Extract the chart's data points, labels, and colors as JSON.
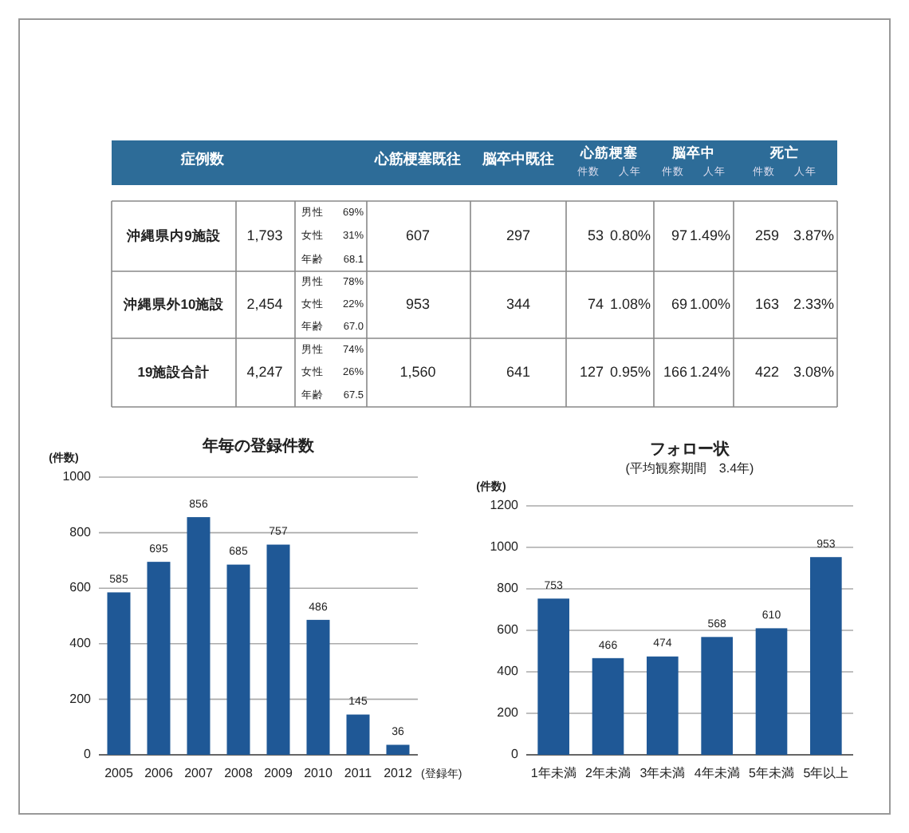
{
  "chart_data": [
    {
      "type": "other",
      "annotations": [
        "症例数",
        "心筋梗塞既往",
        "脳卒中既往",
        "心筋梗塞",
        "件数",
        "人年",
        "脳卒中",
        "件数",
        "人年",
        "死亡",
        "件数",
        "人年",
        "沖縄県内9施設",
        "1,793",
        "男性",
        "69%",
        "女性",
        "31%",
        "年齢",
        "68.1",
        "607",
        "297",
        "53",
        "0.80%",
        "97",
        "1.49%",
        "259",
        "3.87%",
        "沖縄県外10施設",
        "2,454",
        "男性",
        "78%",
        "女性",
        "22%",
        "年齢",
        "67.0",
        "953",
        "344",
        "74",
        "1.08%",
        "69",
        "1.00%",
        "163",
        "2.33%",
        "19施設合計",
        "4,247",
        "男性",
        "74%",
        "女性",
        "26%",
        "年齢",
        "67.5",
        "1,560",
        "641",
        "127",
        "0.95%",
        "166",
        "1.24%",
        "422",
        "3.08%"
      ]
    },
    {
      "type": "bar",
      "title": "年毎の登録件数",
      "ylabel": "(件数)",
      "xlabel": "(登録年)",
      "categories": [
        "2005",
        "2006",
        "2007",
        "2008",
        "2009",
        "2010",
        "2011",
        "2012"
      ],
      "values": [
        585,
        695,
        856,
        685,
        757,
        486,
        145,
        36
      ],
      "color": "#1f5896",
      "ylim": [
        0,
        1000
      ],
      "yticks": [
        0,
        200,
        400,
        600,
        800,
        1000
      ],
      "grid": "y",
      "data_labels": true
    },
    {
      "type": "bar",
      "title": "フォロー状",
      "subtitle": "(平均観察期間　3.4年)",
      "ylabel": "(件数)",
      "categories": [
        "1年未満",
        "2年未満",
        "3年未満",
        "4年未満",
        "5年未満",
        "5年以上"
      ],
      "values": [
        753,
        466,
        474,
        568,
        610,
        953
      ],
      "color": "#1f5896",
      "ylim": [
        0,
        1200
      ],
      "yticks": [
        0,
        200,
        400,
        600,
        800,
        1000,
        1200
      ],
      "grid": "y",
      "data_labels": true
    }
  ]
}
